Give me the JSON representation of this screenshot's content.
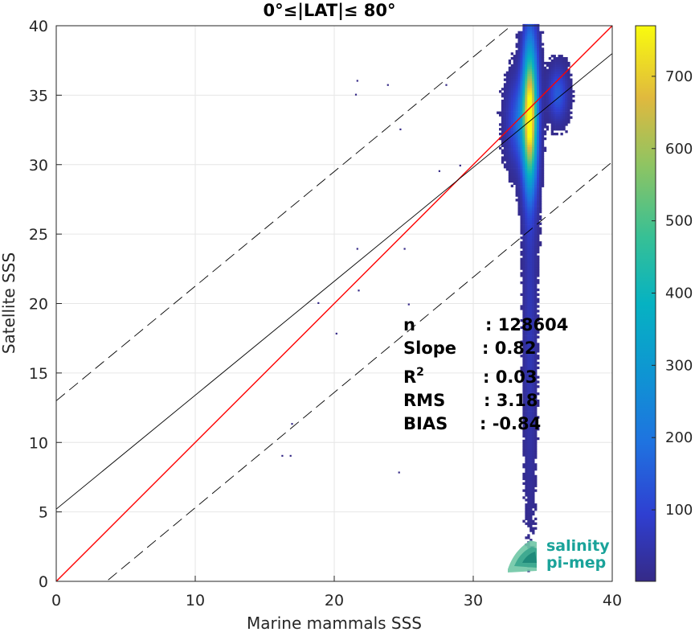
{
  "chart_data": {
    "type": "heatmap",
    "title": "0°≤|LAT|≤ 80°",
    "xlabel": "Marine mammals SSS",
    "ylabel": "Satellite SSS",
    "xlim": [
      0,
      40
    ],
    "ylim": [
      0,
      40
    ],
    "xticks": [
      "0",
      "10",
      "20",
      "30",
      "40"
    ],
    "yticks": [
      "0",
      "5",
      "10",
      "15",
      "20",
      "25",
      "30",
      "35",
      "40"
    ],
    "grid": true,
    "colorbar": {
      "colormap": "parula",
      "range": [
        1,
        770
      ],
      "ticks": [
        "100",
        "200",
        "300",
        "400",
        "500",
        "600",
        "700"
      ],
      "tick_values": [
        100,
        200,
        300,
        400,
        500,
        600,
        700
      ]
    },
    "lines": [
      {
        "name": "identity",
        "color": "#ff0000",
        "style": "solid",
        "x": [
          0,
          40
        ],
        "y": [
          0,
          40
        ]
      },
      {
        "name": "fit",
        "color": "#000000",
        "style": "solid",
        "x": [
          0,
          40
        ],
        "y": [
          5.2,
          38.0
        ]
      },
      {
        "name": "fit-plus-2-sigma",
        "color": "#000000",
        "style": "dashed",
        "x": [
          0,
          40
        ],
        "y": [
          13.0,
          46.0
        ]
      },
      {
        "name": "fit-minus-2-sigma",
        "color": "#000000",
        "style": "dashed",
        "x": [
          0,
          40
        ],
        "y": [
          -3.0,
          30.2
        ]
      }
    ],
    "density": {
      "description_free": true,
      "clusters": [
        {
          "x": 34.0,
          "y": 33.5,
          "sx": 0.35,
          "sy": 3.5,
          "peak": 770
        },
        {
          "x": 33.3,
          "y": 33.0,
          "sx": 0.6,
          "sy": 2.0,
          "peak": 180
        },
        {
          "x": 36.0,
          "y": 35.0,
          "sx": 0.45,
          "sy": 1.2,
          "peak": 150
        },
        {
          "x": 34.0,
          "y": 18.0,
          "sx": 0.3,
          "sy": 8.0,
          "peak": 60
        }
      ],
      "outliers": [
        [
          21.6,
          36.1
        ],
        [
          23.8,
          35.8
        ],
        [
          21.5,
          35.1
        ],
        [
          24.7,
          32.6
        ],
        [
          21.6,
          24.0
        ],
        [
          25.0,
          24.0
        ],
        [
          21.7,
          21.0
        ],
        [
          25.3,
          20.0
        ],
        [
          18.8,
          20.1
        ],
        [
          20.1,
          17.9
        ],
        [
          16.9,
          11.4
        ],
        [
          16.2,
          9.1
        ],
        [
          16.8,
          9.1
        ],
        [
          24.6,
          7.9
        ],
        [
          27.5,
          29.6
        ],
        [
          29.0,
          30.0
        ],
        [
          28.0,
          35.8
        ]
      ]
    },
    "annotations": {
      "stats_labels": [
        "n",
        "Slope",
        "R",
        "RMS",
        "BIAS"
      ],
      "r_superscript": "2",
      "stats_values": [
        ": 128604",
        ": 0.82",
        ": 0.03",
        ": 3.18",
        ": -0.84"
      ]
    }
  },
  "logo": {
    "line1": "salinity",
    "line2": "pi-mep",
    "color": "#1aa39a"
  }
}
